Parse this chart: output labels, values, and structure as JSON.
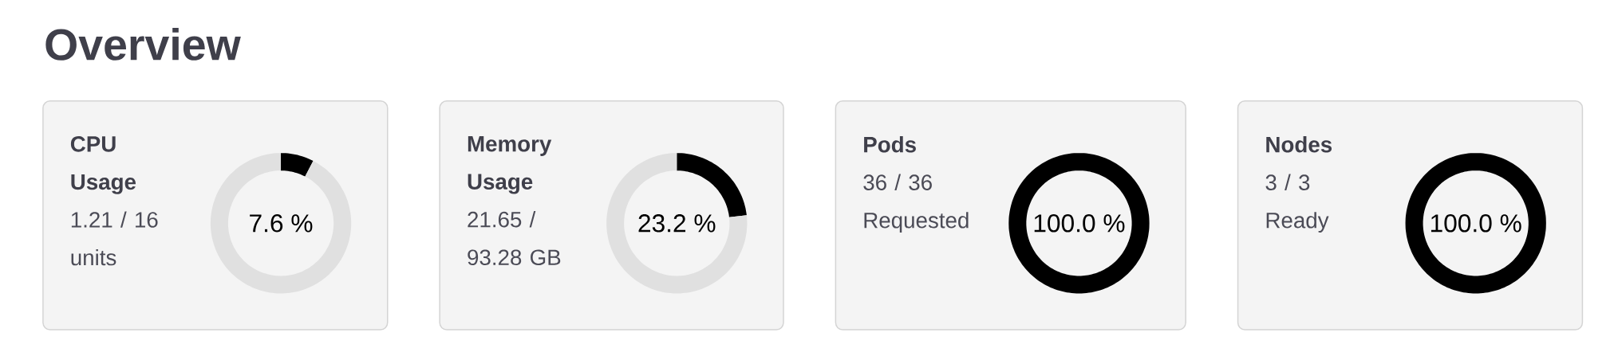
{
  "chart_data": [
    {
      "type": "other",
      "title": "Overview"
    },
    {
      "type": "donut",
      "title": "CPU Usage",
      "subtitle": "1.21 / 16 units",
      "categories": [
        null,
        null
      ],
      "values": [
        7.6,
        92.4
      ],
      "colors": [
        "#000000",
        "#e0e0e0"
      ],
      "annotations": [
        "7.6 %"
      ]
    },
    {
      "type": "donut",
      "title": "Memory Usage",
      "subtitle": "21.65 / 93.28 GB",
      "categories": [
        null,
        null
      ],
      "values": [
        23.2,
        76.8
      ],
      "colors": [
        "#000000",
        "#e0e0e0"
      ],
      "annotations": [
        "23.2 %"
      ]
    },
    {
      "type": "donut",
      "title": "Pods",
      "subtitle": "36 / 36 Requested",
      "categories": [
        null
      ],
      "values": [
        100.0
      ],
      "colors": [
        "#000000"
      ],
      "annotations": [
        "100.0 %"
      ]
    },
    {
      "type": "donut",
      "title": "Nodes",
      "subtitle": "3 / 3 Ready",
      "categories": [
        null
      ],
      "values": [
        100.0
      ],
      "colors": [
        "#000000"
      ],
      "annotations": [
        "100.0 %"
      ]
    }
  ]
}
